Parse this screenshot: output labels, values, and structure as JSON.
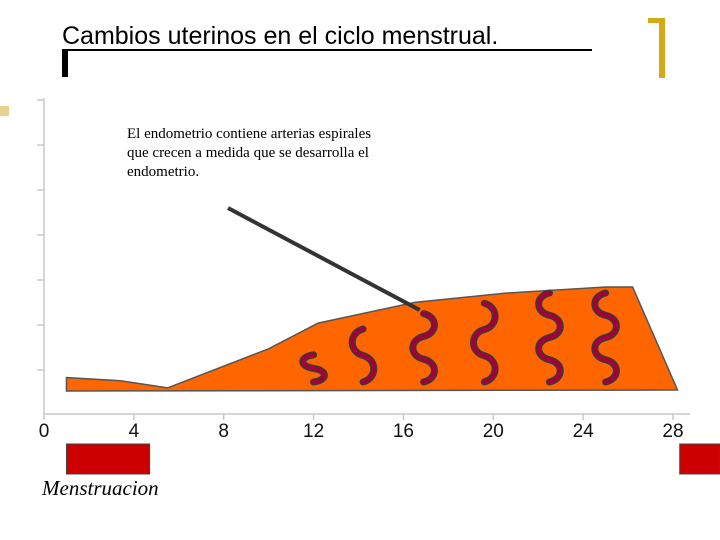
{
  "slide": {
    "title": "Cambios uterinos en el ciclo menstrual.",
    "annotation": "El endometrio contiene arterias espirales que crecen a medida que se desarrolla el endometrio.",
    "phase_label": "Menstruacion"
  },
  "chart_data": {
    "type": "area",
    "x_ticks": [
      0,
      4,
      8,
      12,
      16,
      20,
      24,
      28
    ],
    "xlim": [
      0,
      28
    ],
    "endometrium_profile": [
      {
        "day": 1,
        "thickness": 0.12
      },
      {
        "day": 3.4,
        "thickness": 0.09
      },
      {
        "day": 5.5,
        "thickness": 0.02
      },
      {
        "day": 10,
        "thickness": 0.4
      },
      {
        "day": 12.2,
        "thickness": 0.65
      },
      {
        "day": 16.5,
        "thickness": 0.85
      },
      {
        "day": 20.5,
        "thickness": 0.94
      },
      {
        "day": 25,
        "thickness": 1.0
      },
      {
        "day": 26.2,
        "thickness": 1.0
      },
      {
        "day": 28.2,
        "thickness": 0.0
      }
    ],
    "menstruation_days": [
      [
        1,
        4.7
      ],
      [
        28.3,
        31
      ]
    ],
    "spiral_arteries": [
      {
        "day": 12,
        "height": 0.4
      },
      {
        "day": 14.2,
        "height": 0.65
      },
      {
        "day": 16.9,
        "height": 0.8
      },
      {
        "day": 19.6,
        "height": 0.9
      },
      {
        "day": 22.5,
        "height": 1.0
      },
      {
        "day": 25,
        "height": 1.0
      }
    ],
    "colors": {
      "endometrium": "#ff6600",
      "artery_fill": "#a3003b",
      "artery_outline": "#3a3a3a",
      "menstruation": "#cc0000",
      "axis": "#c8c8c8",
      "pointer": "#333333"
    }
  }
}
